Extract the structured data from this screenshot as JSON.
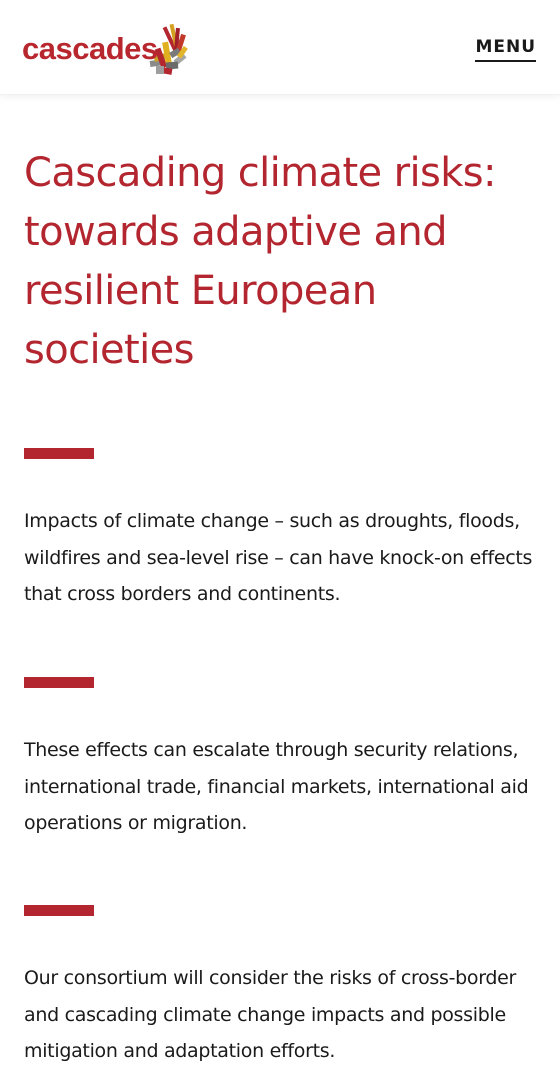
{
  "header": {
    "logo_text": "cascades",
    "menu_label": "MENU"
  },
  "main": {
    "title": "Cascading climate risks: towards adaptive and resilient European societies",
    "paragraphs": [
      "Impacts of climate change – such as droughts, floods, wildfires and sea-level rise – can have knock-on effects that cross borders and continents.",
      "These effects can escalate through security relations, international trade, financial markets, international aid operations or migration.",
      "Our consortium will consider the risks of cross-border and cascading climate change impacts and possible mitigation and adaptation efforts."
    ]
  },
  "colors": {
    "brand_red": "#b3262f",
    "text": "#1a1a1a",
    "background": "#ffffff"
  },
  "icons": {
    "logo_mark": "cascading-blocks-logo"
  }
}
